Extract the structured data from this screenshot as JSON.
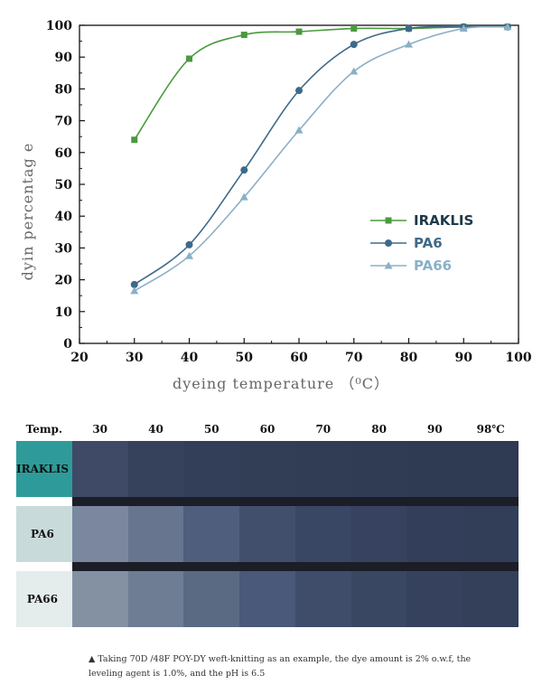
{
  "chart_data": {
    "type": "line",
    "xlabel": "dyeing temperature （⁰C）",
    "ylabel": "dyin percentag e",
    "xlim": [
      20,
      100
    ],
    "ylim": [
      0,
      100
    ],
    "x_ticks": [
      20,
      30,
      40,
      50,
      60,
      70,
      80,
      90,
      100
    ],
    "y_ticks": [
      0,
      10,
      20,
      30,
      40,
      50,
      60,
      70,
      80,
      90,
      100
    ],
    "grid": false,
    "legend_position": "center-right",
    "series": [
      {
        "name": "IRAKLIS",
        "color": "#4a9a3e",
        "marker": "square",
        "x": [
          30,
          40,
          50,
          60,
          70,
          80,
          90,
          98
        ],
        "y": [
          64,
          89.5,
          97,
          98,
          99,
          99,
          99.5,
          99.5
        ]
      },
      {
        "name": "PA6",
        "color": "#3e6a8a",
        "marker": "circle",
        "x": [
          30,
          40,
          50,
          60,
          70,
          80,
          90,
          98
        ],
        "y": [
          18.5,
          31,
          54.5,
          79.5,
          94,
          99,
          99.5,
          99.5
        ]
      },
      {
        "name": "PA66",
        "color": "#8ab0c8",
        "marker": "triangle",
        "x": [
          30,
          40,
          50,
          60,
          70,
          80,
          90,
          98
        ],
        "y": [
          16.5,
          27.5,
          46,
          67,
          85.5,
          94,
          99,
          99.5
        ]
      }
    ]
  },
  "table": {
    "header_label": "Temp.",
    "temperatures": [
      "30",
      "40",
      "50",
      "60",
      "70",
      "80",
      "90",
      "98℃"
    ],
    "rows": [
      {
        "label": "IRAKLIS",
        "label_bg": "#2e9b9a",
        "swatches": [
          "#3e4a66",
          "#36425c",
          "#333e58",
          "#323d56",
          "#313c55",
          "#303b54",
          "#2f3a53",
          "#2f3a53"
        ]
      },
      {
        "label": "PA6",
        "label_bg": "#c8dada",
        "swatches": [
          "#7a879e",
          "#67758f",
          "#4f5e7c",
          "#414f6d",
          "#394664",
          "#36425f",
          "#333f5a",
          "#323d58"
        ]
      },
      {
        "label": "PA66",
        "label_bg": "#e4ecec",
        "swatches": [
          "#8391a3",
          "#6e7c94",
          "#5a6a82",
          "#4a587a",
          "#3f4c6a",
          "#3a4763",
          "#36425d",
          "#343f59"
        ]
      }
    ],
    "separator_color": "#1b1e26"
  },
  "caption": "▲ Taking 70D /48F POY-DY weft-knitting as an example, the dye amount is 2% o.w.f, the leveling agent is 1.0%, and the pH is 6.5"
}
